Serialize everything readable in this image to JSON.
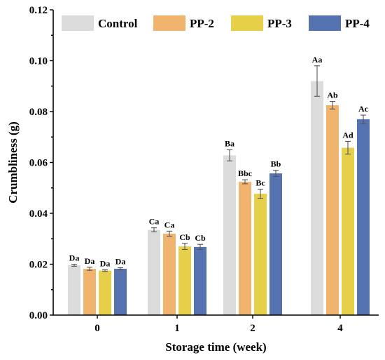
{
  "chart_data": {
    "type": "bar",
    "title": "",
    "xlabel": "Storage time (week)",
    "ylabel": "Crumbliness (g)",
    "categories": [
      "0",
      "1",
      "2",
      "4"
    ],
    "ylim": [
      0.0,
      0.12
    ],
    "yticks": [
      "0.00",
      "0.02",
      "0.04",
      "0.06",
      "0.08",
      "0.10",
      "0.12"
    ],
    "legend_position": "top",
    "series": [
      {
        "name": "Control",
        "color": "#dcdcdc",
        "values": [
          0.0196,
          0.0335,
          0.0628,
          0.092
        ],
        "errors": [
          0.0004,
          0.0008,
          0.0022,
          0.006
        ],
        "labels": [
          "Da",
          "Ca",
          "Ba",
          "Aa"
        ]
      },
      {
        "name": "PP-2",
        "color": "#f0b46e",
        "values": [
          0.0182,
          0.032,
          0.0524,
          0.0825
        ],
        "errors": [
          0.0006,
          0.001,
          0.0008,
          0.0015
        ],
        "labels": [
          "Da",
          "Ca",
          "Bbc",
          "Ab"
        ]
      },
      {
        "name": "PP-3",
        "color": "#e6d04a",
        "values": [
          0.0175,
          0.027,
          0.0477,
          0.0658
        ],
        "errors": [
          0.0003,
          0.0012,
          0.0018,
          0.0025
        ],
        "labels": [
          "Da",
          "Cb",
          "Bc",
          "Ad"
        ]
      },
      {
        "name": "PP-4",
        "color": "#5573b0",
        "values": [
          0.0182,
          0.0268,
          0.0557,
          0.077
        ],
        "errors": [
          0.0004,
          0.001,
          0.0012,
          0.0016
        ],
        "labels": [
          "Da",
          "Cb",
          "Bb",
          "Ac"
        ]
      }
    ]
  }
}
